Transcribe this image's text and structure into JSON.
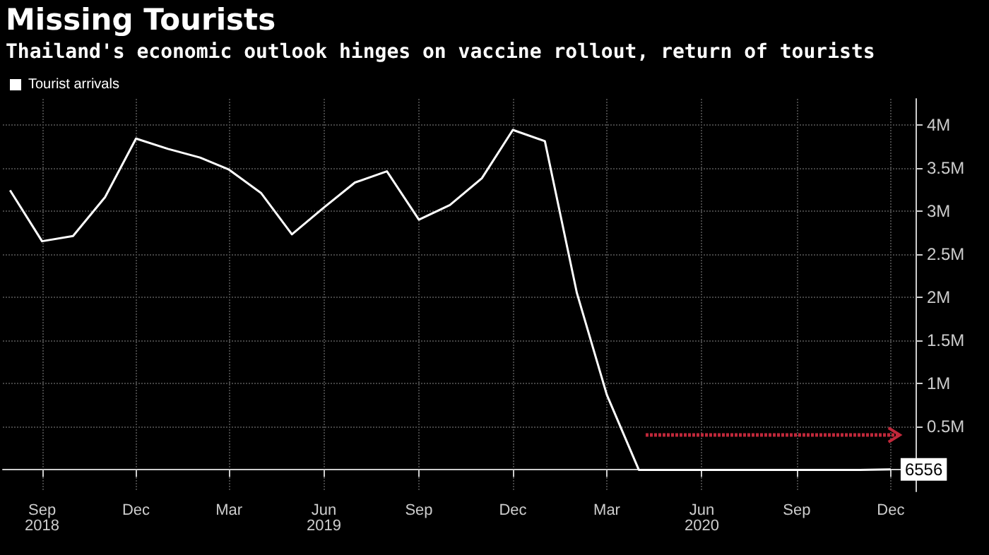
{
  "chart_data": {
    "type": "line",
    "title": "Missing Tourists",
    "subtitle": "Thailand's economic outlook hinges on vaccine rollout, return of tourists",
    "x": [
      "2018-08",
      "2018-09",
      "2018-10",
      "2018-11",
      "2018-12",
      "2019-01",
      "2019-02",
      "2019-03",
      "2019-04",
      "2019-05",
      "2019-06",
      "2019-07",
      "2019-08",
      "2019-09",
      "2019-10",
      "2019-11",
      "2019-12",
      "2020-01",
      "2020-02",
      "2020-03",
      "2020-04",
      "2020-05",
      "2020-06",
      "2020-07",
      "2020-08",
      "2020-09",
      "2020-10",
      "2020-11",
      "2020-12"
    ],
    "series": [
      {
        "name": "Tourist arrivals",
        "color": "#ffffff",
        "values": [
          3240000,
          2650000,
          2710000,
          3160000,
          3840000,
          3720000,
          3620000,
          3480000,
          3210000,
          2730000,
          3040000,
          3330000,
          3460000,
          2900000,
          3070000,
          3380000,
          3940000,
          3810000,
          2050000,
          870000,
          0,
          0,
          0,
          0,
          0,
          0,
          0,
          0,
          6556
        ],
        "value_labels": [
          null,
          null,
          null,
          null,
          null,
          null,
          null,
          null,
          null,
          null,
          null,
          null,
          null,
          null,
          null,
          null,
          null,
          null,
          null,
          null,
          null,
          null,
          null,
          null,
          null,
          null,
          null,
          null,
          "6556"
        ]
      }
    ],
    "xlim": [
      "2018-07-25",
      "2020-12-25"
    ],
    "xticks": [
      {
        "value": "2018-09",
        "label": "Sep\n2018"
      },
      {
        "value": "2018-12",
        "label": "Dec"
      },
      {
        "value": "2019-03",
        "label": "Mar"
      },
      {
        "value": "2019-06",
        "label": "Jun\n2019"
      },
      {
        "value": "2019-09",
        "label": "Sep"
      },
      {
        "value": "2019-12",
        "label": "Dec"
      },
      {
        "value": "2020-03",
        "label": "Mar"
      },
      {
        "value": "2020-06",
        "label": "Jun\n2020"
      },
      {
        "value": "2020-09",
        "label": "Sep"
      },
      {
        "value": "2020-12",
        "label": "Dec"
      }
    ],
    "ylim": [
      -250000,
      4300000
    ],
    "yticks": [
      {
        "value": 500000,
        "label": "0.5M"
      },
      {
        "value": 1000000,
        "label": "1M"
      },
      {
        "value": 1500000,
        "label": "1.5M"
      },
      {
        "value": 2000000,
        "label": "2M"
      },
      {
        "value": 2500000,
        "label": "2.5M"
      },
      {
        "value": 3000000,
        "label": "3M"
      },
      {
        "value": 3500000,
        "label": "3.5M"
      },
      {
        "value": 4000000,
        "label": "4M"
      }
    ],
    "grid": true,
    "legend": "top left",
    "marker": "none",
    "line_style": "solid"
  }
}
